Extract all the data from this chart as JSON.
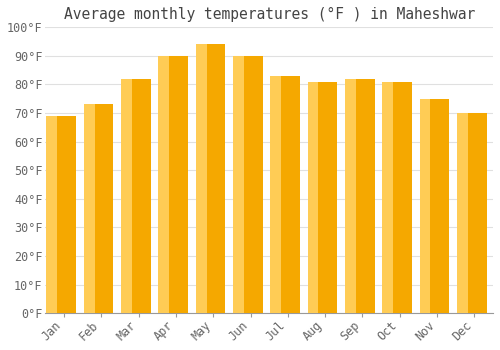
{
  "title": "Average monthly temperatures (°F ) in Maheshwar",
  "months": [
    "Jan",
    "Feb",
    "Mar",
    "Apr",
    "May",
    "Jun",
    "Jul",
    "Aug",
    "Sep",
    "Oct",
    "Nov",
    "Dec"
  ],
  "values": [
    69,
    73,
    82,
    90,
    94,
    90,
    83,
    81,
    82,
    81,
    75,
    70
  ],
  "bar_color_light": "#FFCC55",
  "bar_color_dark": "#F5A800",
  "background_color": "#FFFFFF",
  "grid_color": "#E0E0E0",
  "ylim": [
    0,
    100
  ],
  "ytick_step": 10,
  "title_fontsize": 10.5,
  "tick_fontsize": 8.5
}
